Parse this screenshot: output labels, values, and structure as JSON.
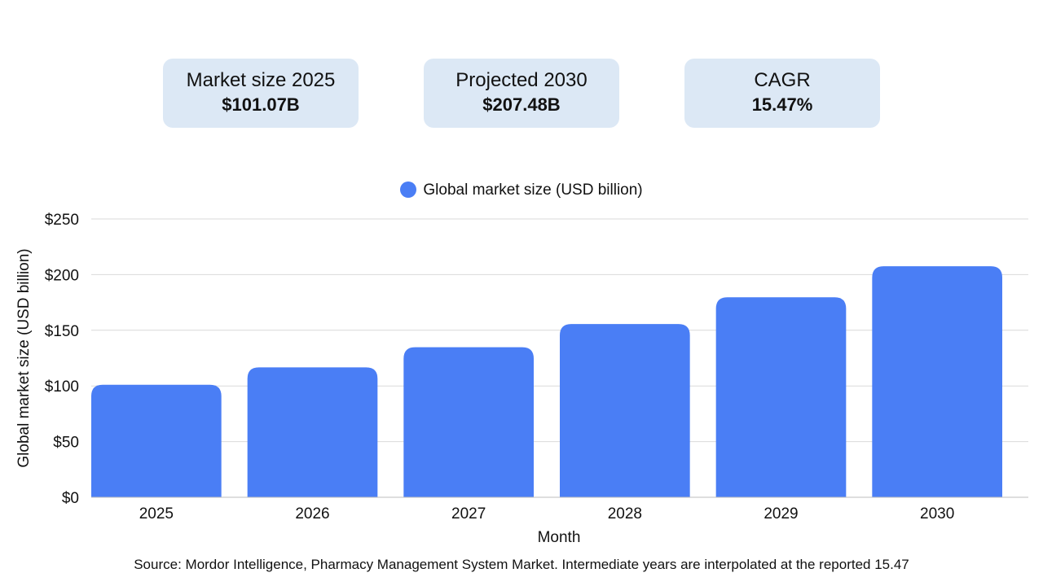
{
  "kpis": [
    {
      "label": "Market size 2025",
      "value": "$101.07B"
    },
    {
      "label": "Projected 2030",
      "value": "$207.48B"
    },
    {
      "label": "CAGR",
      "value": "15.47%"
    }
  ],
  "legend": {
    "label": "Global market size (USD billion)"
  },
  "colors": {
    "bar": "#4a7ef5",
    "card": "#dce8f5",
    "grid": "#d9d9d9"
  },
  "chart_data": {
    "type": "bar",
    "categories": [
      "2025",
      "2026",
      "2027",
      "2028",
      "2029",
      "2030"
    ],
    "series": [
      {
        "name": "Global market size (USD billion)",
        "values": [
          101.07,
          116.7,
          134.75,
          155.6,
          179.67,
          207.48
        ]
      }
    ],
    "xlabel": "Month",
    "ylabel": "Global market size (USD billion)",
    "ylim": [
      0,
      250
    ],
    "yticks": [
      0,
      50,
      100,
      150,
      200,
      250
    ],
    "ytick_labels": [
      "$0",
      "$50",
      "$100",
      "$150",
      "$200",
      "$250"
    ],
    "grid": true,
    "legend_position": "top-center"
  },
  "source": "Source: Mordor Intelligence, Pharmacy Management System Market. Intermediate years are interpolated at the reported 15.47"
}
